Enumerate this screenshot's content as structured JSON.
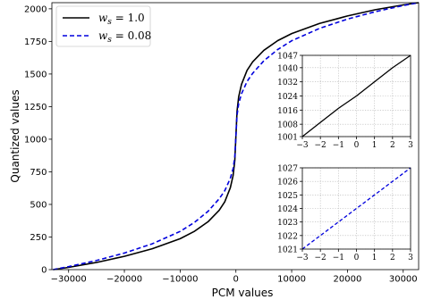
{
  "chart_data": [
    {
      "type": "line",
      "xlabel": "PCM values",
      "ylabel": "Quantized values",
      "xlim": [
        -33000,
        32767
      ],
      "ylim": [
        0,
        2047
      ],
      "xticks": [
        -30000,
        -20000,
        -10000,
        0,
        10000,
        20000,
        30000
      ],
      "xtick_labels": [
        "−30000",
        "−20000",
        "−10000",
        "0",
        "10000",
        "20000",
        "30000"
      ],
      "yticks": [
        0,
        250,
        500,
        750,
        1000,
        1250,
        1500,
        1750,
        2000
      ],
      "legend": "top-left",
      "grid": false,
      "series": [
        {
          "name": "$w_s = 1.0$",
          "legend_label": "w",
          "legend_sub": "s",
          "legend_rest": " = 1.0",
          "color": "#000000",
          "style": "solid",
          "x": [
            -32768,
            -30000,
            -25000,
            -20000,
            -15000,
            -10000,
            -7500,
            -5000,
            -3000,
            -2000,
            -1000,
            -500,
            -200,
            0,
            200,
            500,
            1000,
            2000,
            3000,
            5000,
            7500,
            10000,
            15000,
            20000,
            25000,
            30000,
            32767
          ],
          "y": [
            0,
            17,
            55,
            102,
            160,
            237,
            292,
            367,
            455,
            520,
            628,
            722,
            835,
            1024,
            1213,
            1326,
            1420,
            1528,
            1593,
            1681,
            1756,
            1810,
            1888,
            1945,
            1993,
            2030,
            2047
          ]
        },
        {
          "name": "$w_s = 0.08$",
          "legend_label": "w",
          "legend_sub": "s",
          "legend_rest": " = 0.08",
          "color": "#0000dd",
          "style": "dashed",
          "x": [
            -32768,
            -30000,
            -25000,
            -20000,
            -15000,
            -10000,
            -7500,
            -5000,
            -3000,
            -2000,
            -1000,
            -500,
            -200,
            0,
            200,
            500,
            1000,
            2000,
            3000,
            5000,
            7500,
            10000,
            15000,
            20000,
            25000,
            30000,
            32767
          ],
          "y": [
            0,
            23,
            70,
            127,
            198,
            293,
            360,
            447,
            543,
            605,
            700,
            775,
            865,
            1024,
            1183,
            1273,
            1348,
            1443,
            1505,
            1601,
            1688,
            1755,
            1850,
            1921,
            1978,
            2025,
            2047
          ]
        }
      ]
    },
    {
      "type": "line",
      "position": "inset-top",
      "xlim": [
        -3,
        3
      ],
      "ylim": [
        1001,
        1047
      ],
      "xticks": [
        -3,
        -2,
        -1,
        0,
        1,
        2,
        3
      ],
      "xtick_labels": [
        "−3",
        "−2",
        "−1",
        "0",
        "1",
        "2",
        "3"
      ],
      "yticks": [
        1001,
        1008,
        1016,
        1024,
        1032,
        1040,
        1047
      ],
      "grid": true,
      "series": [
        {
          "name": "$w_s = 1.0$",
          "color": "#000000",
          "style": "solid",
          "x": [
            -3,
            -2,
            -1,
            0,
            1,
            2,
            3
          ],
          "y": [
            1001,
            1009,
            1017,
            1024,
            1032,
            1040,
            1047
          ]
        }
      ]
    },
    {
      "type": "line",
      "position": "inset-bottom",
      "xlim": [
        -3,
        3
      ],
      "ylim": [
        1021,
        1027
      ],
      "xticks": [
        -3,
        -2,
        -1,
        0,
        1,
        2,
        3
      ],
      "xtick_labels": [
        "−3",
        "−2",
        "−1",
        "0",
        "1",
        "2",
        "3"
      ],
      "yticks": [
        1021,
        1022,
        1023,
        1024,
        1025,
        1026,
        1027
      ],
      "grid": true,
      "series": [
        {
          "name": "$w_s = 0.08$",
          "color": "#0000dd",
          "style": "dashed",
          "x": [
            -3,
            -2,
            -1,
            0,
            1,
            2,
            3
          ],
          "y": [
            1021,
            1022,
            1023,
            1024,
            1025,
            1026,
            1027
          ]
        }
      ]
    }
  ]
}
